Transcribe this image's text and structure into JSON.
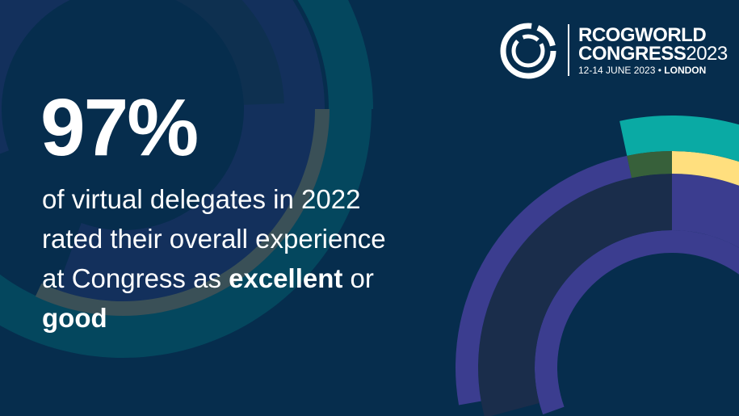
{
  "headline": {
    "stat": "97%",
    "line1": "of virtual delegates in 2022",
    "line2": "rated their overall experience",
    "line3_start": "at Congress as ",
    "line3_bold": "excellent",
    "line3_end": " or",
    "line4_bold": "good"
  },
  "logo": {
    "icon": "rcog-circle-logo-icon",
    "title_line1": "RCOGWORLD",
    "title_line2": "CONGRESS",
    "year": "2023",
    "dates": "12-14 JUNE 2023",
    "separator": "•",
    "city": "LONDON"
  },
  "colors": {
    "background": "#062d4d",
    "blue_ring": "#13305c",
    "teal_dark": "#04475e",
    "gray_arc": "#3a5057",
    "purple": "#3b3d8f",
    "navy_band": "#1a2d4b",
    "teal": "#0aaaa4",
    "green": "#37603a",
    "yellow": "#ffdf7e",
    "text": "#ffffff"
  }
}
